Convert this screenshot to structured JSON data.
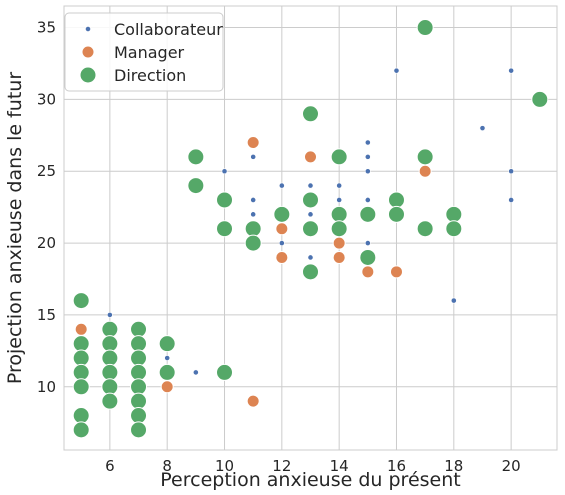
{
  "chart_data": {
    "type": "scatter",
    "xlabel": "Perception anxieuse du présent",
    "ylabel": "Projection anxieuse dans le futur",
    "xlim": [
      4.4,
      21.6
    ],
    "ylim": [
      5.6,
      36.5
    ],
    "xticks": [
      6,
      8,
      10,
      12,
      14,
      16,
      18,
      20
    ],
    "yticks": [
      10,
      15,
      20,
      25,
      30,
      35
    ],
    "grid": true,
    "legend_position": "top-left",
    "series": [
      {
        "name": "Collaborateur",
        "color": "#4c72b0",
        "size": "small",
        "points": [
          [
            6,
            15
          ],
          [
            8,
            12
          ],
          [
            9,
            11
          ],
          [
            10,
            25
          ],
          [
            11,
            26
          ],
          [
            11,
            23
          ],
          [
            11,
            22
          ],
          [
            12,
            24
          ],
          [
            12,
            22
          ],
          [
            12,
            20
          ],
          [
            13,
            24
          ],
          [
            13,
            22
          ],
          [
            13,
            19
          ],
          [
            14,
            24
          ],
          [
            14,
            23
          ],
          [
            14,
            22
          ],
          [
            14,
            20
          ],
          [
            15,
            27
          ],
          [
            15,
            26
          ],
          [
            15,
            25
          ],
          [
            15,
            23
          ],
          [
            15,
            20
          ],
          [
            16,
            32
          ],
          [
            18,
            16
          ],
          [
            19,
            28
          ],
          [
            20,
            32
          ],
          [
            20,
            25
          ],
          [
            20,
            23
          ]
        ]
      },
      {
        "name": "Manager",
        "color": "#dd8452",
        "size": "medium",
        "points": [
          [
            5,
            14
          ],
          [
            8,
            10
          ],
          [
            11,
            27
          ],
          [
            11,
            9
          ],
          [
            12,
            21
          ],
          [
            12,
            19
          ],
          [
            13,
            26
          ],
          [
            14,
            20
          ],
          [
            14,
            19
          ],
          [
            15,
            18
          ],
          [
            16,
            18
          ],
          [
            17,
            25
          ]
        ]
      },
      {
        "name": "Direction",
        "color": "#55a868",
        "size": "large",
        "points": [
          [
            5,
            16
          ],
          [
            5,
            13
          ],
          [
            5,
            12
          ],
          [
            5,
            11
          ],
          [
            5,
            10
          ],
          [
            5,
            8
          ],
          [
            5,
            7
          ],
          [
            6,
            14
          ],
          [
            6,
            13
          ],
          [
            6,
            12
          ],
          [
            6,
            11
          ],
          [
            6,
            10
          ],
          [
            6,
            9
          ],
          [
            7,
            14
          ],
          [
            7,
            13
          ],
          [
            7,
            12
          ],
          [
            7,
            11
          ],
          [
            7,
            10
          ],
          [
            7,
            9
          ],
          [
            7,
            8
          ],
          [
            7,
            7
          ],
          [
            8,
            13
          ],
          [
            8,
            11
          ],
          [
            9,
            26
          ],
          [
            9,
            24
          ],
          [
            10,
            23
          ],
          [
            10,
            21
          ],
          [
            10,
            11
          ],
          [
            11,
            21
          ],
          [
            11,
            20
          ],
          [
            12,
            22
          ],
          [
            13,
            29
          ],
          [
            13,
            23
          ],
          [
            13,
            21
          ],
          [
            13,
            18
          ],
          [
            14,
            26
          ],
          [
            14,
            22
          ],
          [
            14,
            21
          ],
          [
            15,
            22
          ],
          [
            15,
            19
          ],
          [
            16,
            23
          ],
          [
            16,
            22
          ],
          [
            17,
            35
          ],
          [
            17,
            26
          ],
          [
            17,
            21
          ],
          [
            18,
            22
          ],
          [
            18,
            21
          ],
          [
            21,
            30
          ]
        ]
      }
    ]
  }
}
